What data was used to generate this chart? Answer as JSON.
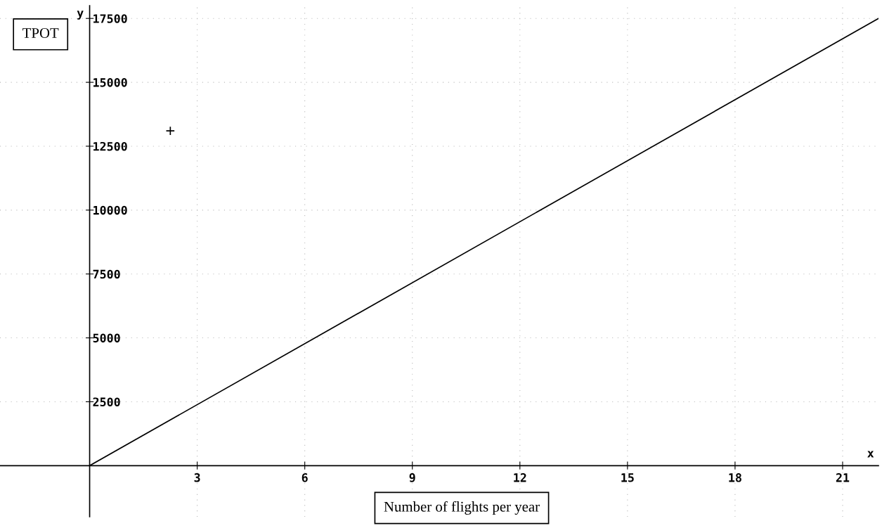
{
  "chart_data": {
    "type": "line",
    "xlabel": "Number of flights per year",
    "ylabel": "TPOT",
    "annotations": [
      "x",
      "y"
    ],
    "series": [
      {
        "color": "#000000",
        "x": [
          0,
          22
        ],
        "values": [
          0,
          17500
        ],
        "marker": "none"
      },
      {
        "type": "scatter",
        "color": "#000000",
        "x": [
          2.25
        ],
        "values": [
          13100
        ],
        "marker": "cross"
      }
    ],
    "xlim": [
      -2.5,
      22
    ],
    "ylim": [
      -2000,
      18000
    ],
    "xticks": [
      3,
      6,
      9,
      12,
      15,
      18,
      21
    ],
    "yticks": [
      2500,
      5000,
      7500,
      10000,
      12500,
      15000,
      17500
    ],
    "grid": true,
    "legend": false
  }
}
